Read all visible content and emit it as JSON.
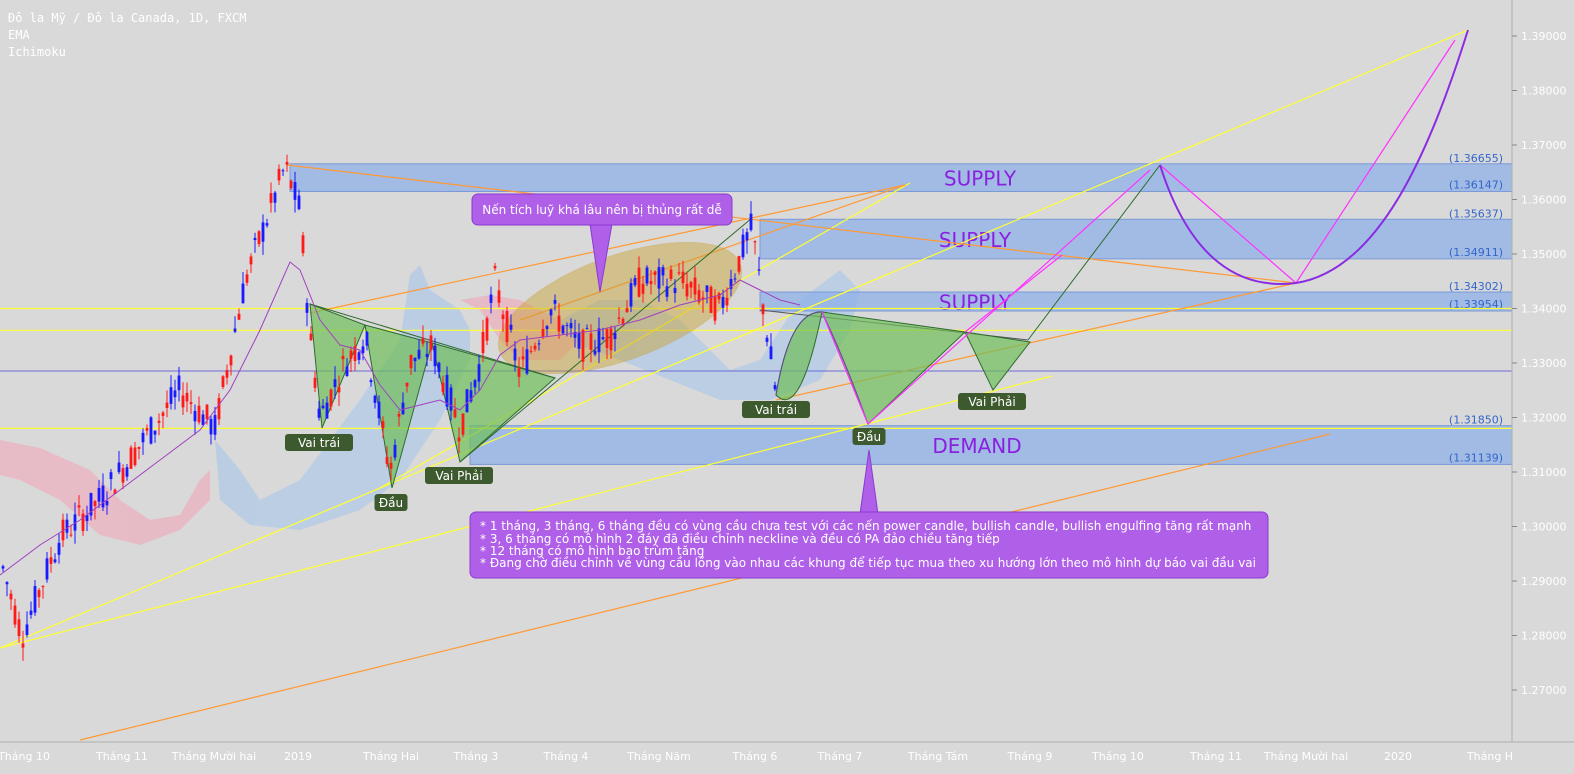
{
  "header": {
    "symbol_line": "Đô la Mỹ / Đô la Canada, 1D, FXCM",
    "indicator_1": "EMA",
    "indicator_2": "Ichimoku"
  },
  "colors": {
    "background": "#d9d9d9",
    "up_candle": "#1a1aff",
    "down_candle": "#ff1a1a",
    "zone_fill": "#8fb0e8",
    "supply_text": "#8a1fe0",
    "pattern_fill": "#6fbf5a",
    "callout_fill": "#b060e8",
    "horizontal_yellow": "#ffff33",
    "orange_trend": "#ff9933",
    "magenta_path": "#ff33ff",
    "purple_curve": "#8a2be2",
    "label_bg": "#3d5a2e"
  },
  "chart_data": {
    "type": "candlestick",
    "y_axis": {
      "min": 1.26,
      "max": 1.395,
      "ticks": [
        "1.39000",
        "1.38000",
        "1.37000",
        "1.36000",
        "1.35000",
        "1.34000",
        "1.33000",
        "1.32000",
        "1.31000",
        "1.30000",
        "1.29000",
        "1.28000",
        "1.27000"
      ]
    },
    "x_axis": {
      "labels": [
        "Tháng 10",
        "Tháng 11",
        "Tháng Mười hai",
        "2019",
        "Tháng Hai",
        "Tháng 3",
        "Tháng 4",
        "Tháng Năm",
        "Tháng 6",
        "Tháng 7",
        "Tháng Tám",
        "Tháng 9",
        "Tháng 10",
        "Tháng 11",
        "Tháng Mười hai",
        "2020",
        "Tháng H"
      ]
    },
    "price_highlights": [
      {
        "value": "1.34000",
        "price": 1.34
      },
      {
        "value": "1.33600",
        "price": 1.336
      },
      {
        "value": "1.31800",
        "price": 1.318
      }
    ],
    "zones": [
      {
        "label": "SUPPLY",
        "top": 1.36655,
        "bottom": 1.36147,
        "top_label": "(1.36655)",
        "bottom_label": "(1.36147)"
      },
      {
        "label": "SUPPLY",
        "top": 1.35637,
        "bottom": 1.34911,
        "top_label": "(1.35637)",
        "bottom_label": "(1.34911)"
      },
      {
        "label": "SUPPLY",
        "top": 1.34302,
        "bottom": 1.33954,
        "top_label": "(1.34302)",
        "bottom_label": "(1.33954)"
      },
      {
        "label": "DEMAND",
        "top": 1.3185,
        "bottom": 1.31139,
        "top_label": "(1.31850)",
        "bottom_label": "(1.31139)"
      }
    ],
    "pattern_labels": [
      {
        "text": "Vai trái"
      },
      {
        "text": "Đầu"
      },
      {
        "text": "Vai Phải"
      },
      {
        "text": "Vai trái"
      },
      {
        "text": "Đầu"
      },
      {
        "text": "Vai Phải"
      }
    ],
    "annotations": {
      "callout_1": "Nến tích luỹ khá lâu nên bị thủng rất dễ",
      "callout_2": [
        "* 1 tháng, 3 tháng, 6 tháng đều có vùng cầu chưa test với các nến power candle, bullish candle, bullish engulfing tăng rất mạnh",
        "* 3, 6 tháng có mô hình 2 đáy đã điều chỉnh neckline và đều có PA đảo chiều tăng tiếp",
        "* 12 tháng có mô hình bao trùm tăng",
        "* Đang chờ điều chỉnh về vùng cầu lồng vào nhau các khung để tiếp tục mua theo xu hướng lớn theo mô hình dự báo vai đầu vai"
      ]
    }
  }
}
